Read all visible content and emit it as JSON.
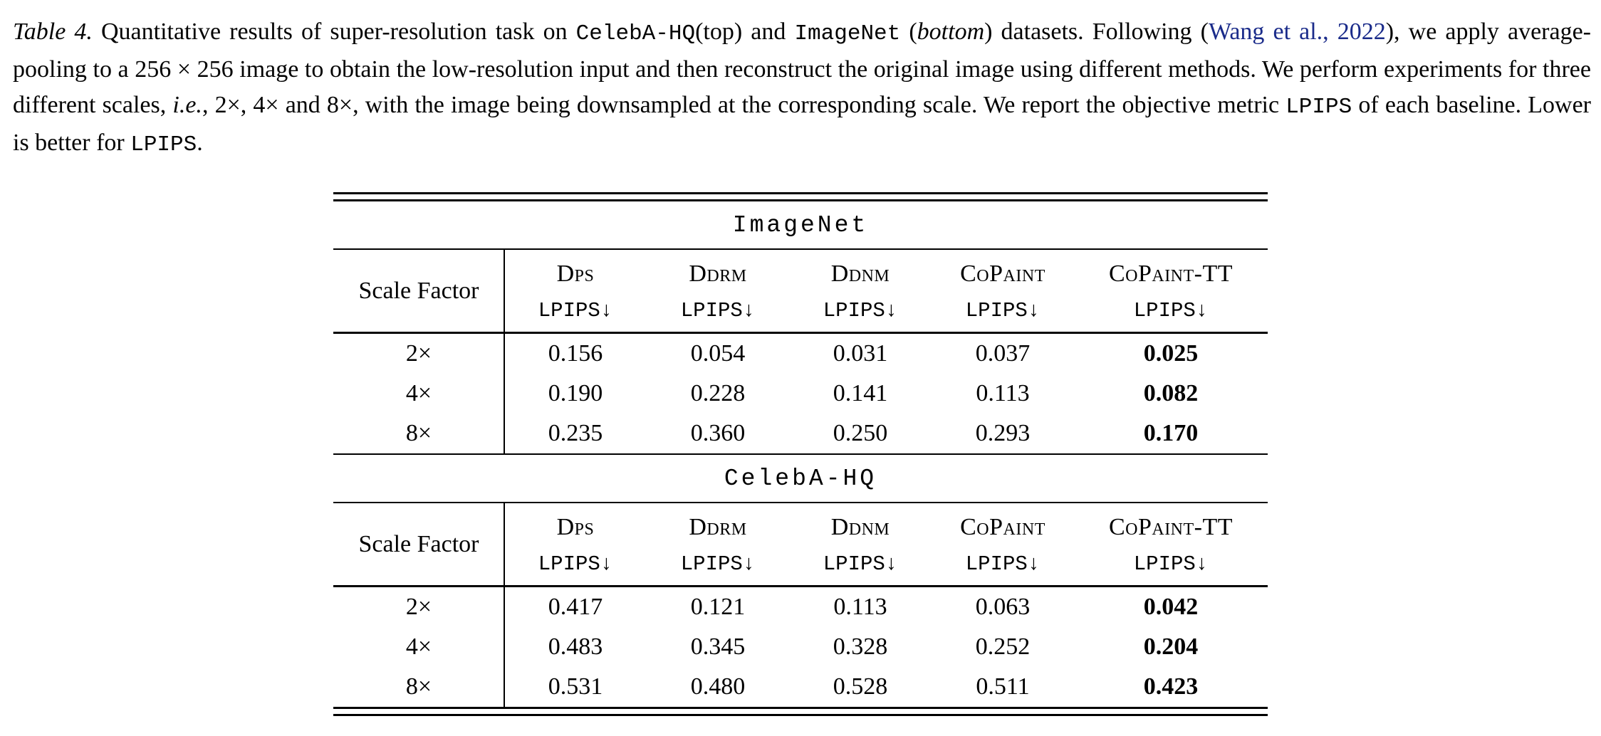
{
  "caption": {
    "segments": [
      {
        "text": "Table 4."
      },
      {
        "text": " Quantitative results of super-resolution task on "
      },
      {
        "text": "CelebA-HQ"
      },
      {
        "text": "(top) and "
      },
      {
        "text": "ImageNet"
      },
      {
        "text": " ("
      },
      {
        "text": "bottom"
      },
      {
        "text": ") datasets. Following ("
      },
      {
        "text": "Wang et al., 2022"
      },
      {
        "text": "), we apply average-pooling to a 256 × 256 image to obtain the low-resolution input and then reconstruct the original image using different methods. We perform experiments for three different scales, "
      },
      {
        "text": "i.e."
      },
      {
        "text": ", 2×, 4× and 8×, with the image being downsampled at the corresponding scale. We report the objective metric "
      },
      {
        "text": "LPIPS"
      },
      {
        "text": " of each baseline. Lower is better for "
      },
      {
        "text": "LPIPS"
      },
      {
        "text": "."
      }
    ],
    "link_color": "#1a2b8a"
  },
  "table": {
    "sections": [
      {
        "title": "ImageNet",
        "corner_label": "Scale Factor",
        "methods": [
          "Dps",
          "Ddrm",
          "Ddnm",
          "CoPaint",
          "CoPaint-TT"
        ],
        "metric_label": "LPIPS↓",
        "rows": [
          [
            "2×",
            "0.156",
            "0.054",
            "0.031",
            "0.037",
            "0.025"
          ],
          [
            "4×",
            "0.190",
            "0.228",
            "0.141",
            "0.113",
            "0.082"
          ],
          [
            "8×",
            "0.235",
            "0.360",
            "0.250",
            "0.293",
            "0.170"
          ]
        ]
      },
      {
        "title": "CelebA-HQ",
        "corner_label": "Scale Factor",
        "methods": [
          "Dps",
          "Ddrm",
          "Ddnm",
          "CoPaint",
          "CoPaint-TT"
        ],
        "metric_label": "LPIPS↓",
        "rows": [
          [
            "2×",
            "0.417",
            "0.121",
            "0.113",
            "0.063",
            "0.042"
          ],
          [
            "4×",
            "0.483",
            "0.345",
            "0.328",
            "0.252",
            "0.204"
          ],
          [
            "8×",
            "0.531",
            "0.480",
            "0.528",
            "0.511",
            "0.423"
          ]
        ]
      }
    ]
  },
  "chart_data": [
    {
      "type": "table",
      "title": "ImageNet",
      "columns": [
        "Scale Factor",
        "DPS LPIPS↓",
        "DDRM LPIPS↓",
        "DDNM LPIPS↓",
        "CoPaint LPIPS↓",
        "CoPaint-TT LPIPS↓"
      ],
      "rows": [
        [
          "2×",
          0.156,
          0.054,
          0.031,
          0.037,
          0.025
        ],
        [
          "4×",
          0.19,
          0.228,
          0.141,
          0.113,
          0.082
        ],
        [
          "8×",
          0.235,
          0.36,
          0.25,
          0.293,
          0.17
        ]
      ]
    },
    {
      "type": "table",
      "title": "CelebA-HQ",
      "columns": [
        "Scale Factor",
        "DPS LPIPS↓",
        "DDRM LPIPS↓",
        "DDNM LPIPS↓",
        "CoPaint LPIPS↓",
        "CoPaint-TT LPIPS↓"
      ],
      "rows": [
        [
          "2×",
          0.417,
          0.121,
          0.113,
          0.063,
          0.042
        ],
        [
          "4×",
          0.483,
          0.345,
          0.328,
          0.252,
          0.204
        ],
        [
          "8×",
          0.531,
          0.48,
          0.528,
          0.511,
          0.423
        ]
      ]
    }
  ]
}
